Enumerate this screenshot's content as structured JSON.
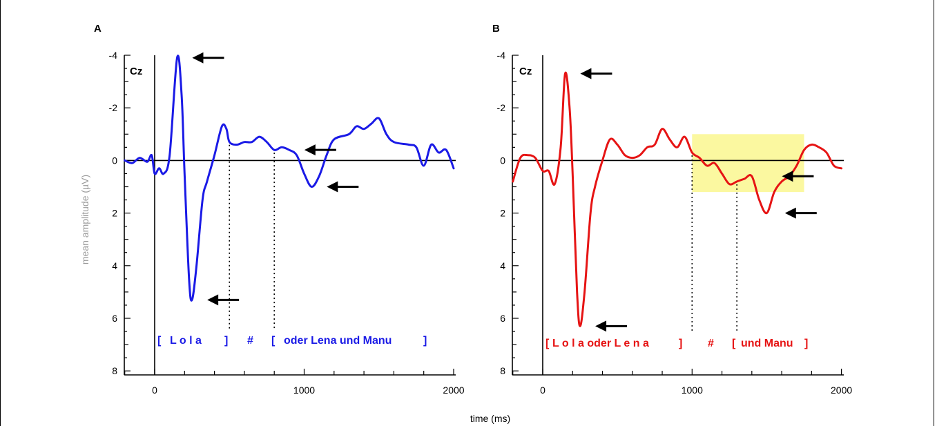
{
  "colors": {
    "series_a": "#1a1ae6",
    "series_b": "#e61414",
    "highlight": "#fbf8a0"
  },
  "axis": {
    "ylabel": "mean amplitude (µV)",
    "xlabel": "time (ms)",
    "y_ticks": [
      "-4",
      "-2",
      "0",
      "2",
      "4",
      "6",
      "8"
    ],
    "x_ticks": [
      "0",
      "1000",
      "2000"
    ]
  },
  "chart_data": [
    {
      "type": "line",
      "panel": "A",
      "electrode": "Cz",
      "xlim": [
        -200,
        2000
      ],
      "ylim": [
        -4,
        8
      ],
      "y_inverted": true,
      "phrase_segments": [
        "[",
        "L o l a",
        "]",
        "#",
        "[",
        "oder Lena und Manu",
        "]"
      ],
      "boundaries_ms": [
        500,
        800
      ],
      "series": [
        {
          "points": [
            [
              -200,
              0
            ],
            [
              -150,
              0.1
            ],
            [
              -100,
              -0.1
            ],
            [
              -50,
              0.05
            ],
            [
              -20,
              -0.2
            ],
            [
              0,
              0.5
            ],
            [
              30,
              0.3
            ],
            [
              60,
              0.5
            ],
            [
              100,
              -0.2
            ],
            [
              150,
              -3.9
            ],
            [
              180,
              -2.5
            ],
            [
              200,
              0.5
            ],
            [
              230,
              4.5
            ],
            [
              250,
              5.3
            ],
            [
              280,
              4.0
            ],
            [
              320,
              1.5
            ],
            [
              350,
              0.8
            ],
            [
              400,
              -0.2
            ],
            [
              450,
              -1.3
            ],
            [
              480,
              -1.2
            ],
            [
              500,
              -0.7
            ],
            [
              550,
              -0.6
            ],
            [
              600,
              -0.7
            ],
            [
              650,
              -0.7
            ],
            [
              700,
              -0.9
            ],
            [
              750,
              -0.7
            ],
            [
              800,
              -0.4
            ],
            [
              850,
              -0.5
            ],
            [
              900,
              -0.4
            ],
            [
              950,
              -0.2
            ],
            [
              1000,
              0.5
            ],
            [
              1050,
              1.0
            ],
            [
              1100,
              0.6
            ],
            [
              1150,
              -0.2
            ],
            [
              1200,
              -0.8
            ],
            [
              1300,
              -1.0
            ],
            [
              1350,
              -1.3
            ],
            [
              1400,
              -1.2
            ],
            [
              1450,
              -1.4
            ],
            [
              1500,
              -1.6
            ],
            [
              1550,
              -1.0
            ],
            [
              1600,
              -0.7
            ],
            [
              1700,
              -0.6
            ],
            [
              1750,
              -0.5
            ],
            [
              1800,
              0.2
            ],
            [
              1850,
              -0.6
            ],
            [
              1900,
              -0.3
            ],
            [
              1950,
              -0.4
            ],
            [
              2000,
              0.3
            ]
          ]
        }
      ],
      "arrows_at": [
        [
          150,
          -3.9
        ],
        [
          250,
          5.3
        ],
        [
          900,
          -0.4
        ],
        [
          1050,
          1.0
        ]
      ]
    },
    {
      "type": "line",
      "panel": "B",
      "electrode": "Cz",
      "xlim": [
        -200,
        2000
      ],
      "ylim": [
        -4,
        8
      ],
      "y_inverted": true,
      "phrase_segments": [
        "[",
        "L o l a  oder  L e n a",
        "]",
        "#",
        "[",
        "und Manu",
        "]"
      ],
      "boundaries_ms": [
        1000,
        1300
      ],
      "highlight_region": {
        "x": [
          1000,
          1750
        ],
        "y": [
          -1,
          1.2
        ]
      },
      "series": [
        {
          "points": [
            [
              -200,
              0.8
            ],
            [
              -150,
              -0.1
            ],
            [
              -100,
              -0.2
            ],
            [
              -50,
              -0.1
            ],
            [
              0,
              0.4
            ],
            [
              40,
              0.4
            ],
            [
              80,
              0.9
            ],
            [
              120,
              -0.5
            ],
            [
              150,
              -3.3
            ],
            [
              180,
              -2.0
            ],
            [
              200,
              0.5
            ],
            [
              230,
              5.0
            ],
            [
              250,
              6.3
            ],
            [
              280,
              5.0
            ],
            [
              320,
              2.0
            ],
            [
              350,
              1.0
            ],
            [
              400,
              0
            ],
            [
              450,
              -0.8
            ],
            [
              500,
              -0.6
            ],
            [
              550,
              -0.2
            ],
            [
              600,
              -0.1
            ],
            [
              650,
              -0.2
            ],
            [
              700,
              -0.5
            ],
            [
              750,
              -0.6
            ],
            [
              800,
              -1.2
            ],
            [
              850,
              -0.8
            ],
            [
              900,
              -0.5
            ],
            [
              950,
              -0.9
            ],
            [
              1000,
              -0.3
            ],
            [
              1050,
              -0.1
            ],
            [
              1100,
              0.2
            ],
            [
              1150,
              0.1
            ],
            [
              1200,
              0.5
            ],
            [
              1250,
              0.9
            ],
            [
              1300,
              0.8
            ],
            [
              1350,
              0.7
            ],
            [
              1400,
              0.6
            ],
            [
              1450,
              1.5
            ],
            [
              1500,
              2.0
            ],
            [
              1550,
              1.2
            ],
            [
              1600,
              0.8
            ],
            [
              1650,
              0.6
            ],
            [
              1700,
              0.2
            ],
            [
              1750,
              -0.4
            ],
            [
              1800,
              -0.6
            ],
            [
              1850,
              -0.5
            ],
            [
              1900,
              -0.3
            ],
            [
              1950,
              0.2
            ],
            [
              2000,
              0.3
            ]
          ]
        }
      ],
      "arrows_at": [
        [
          150,
          -3.3
        ],
        [
          250,
          6.3
        ],
        [
          1500,
          0.6
        ],
        [
          1520,
          2.0
        ]
      ]
    }
  ]
}
